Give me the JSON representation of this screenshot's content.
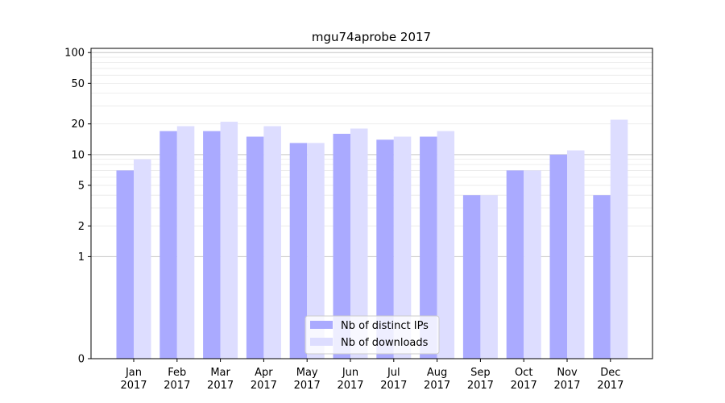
{
  "chart_data": {
    "type": "bar",
    "title": "mgu74aprobe 2017",
    "xlabel": "",
    "ylabel": "",
    "yscale": "symlog",
    "ylim": [
      0,
      110
    ],
    "yticks": [
      0,
      1,
      2,
      5,
      10,
      20,
      50,
      100
    ],
    "ytick_labels": [
      "0",
      "1",
      "2",
      "5",
      "10",
      "20",
      "50",
      "100"
    ],
    "categories": [
      "Jan\n2017",
      "Feb\n2017",
      "Mar\n2017",
      "Apr\n2017",
      "May\n2017",
      "Jun\n2017",
      "Jul\n2017",
      "Aug\n2017",
      "Sep\n2017",
      "Oct\n2017",
      "Nov\n2017",
      "Dec\n2017"
    ],
    "series": [
      {
        "name": "Nb of distinct IPs",
        "color": "#aaaaff",
        "values": [
          7,
          17,
          17,
          15,
          13,
          16,
          14,
          15,
          4,
          7,
          10,
          4
        ]
      },
      {
        "name": "Nb of downloads",
        "color": "#ddddff",
        "values": [
          9,
          19,
          21,
          19,
          13,
          18,
          15,
          17,
          4,
          7,
          11,
          22
        ]
      }
    ],
    "legend_position": "bottom-center",
    "grid": true
  }
}
